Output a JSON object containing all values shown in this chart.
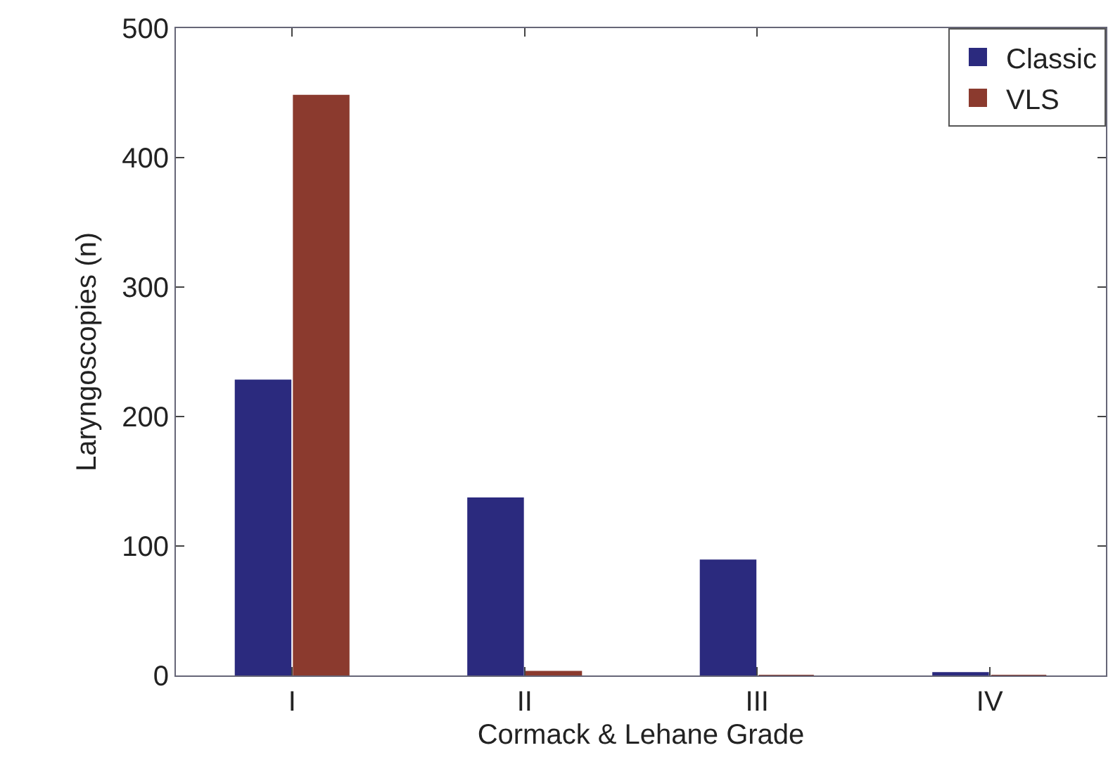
{
  "chart_data": {
    "type": "bar",
    "xlabel": "Cormack & Lehane Grade",
    "ylabel": "Laryngoscopies (n)",
    "categories": [
      "I",
      "II",
      "III",
      "IV"
    ],
    "series": [
      {
        "name": "Classic",
        "color": "#2b2a7e",
        "values": [
          228,
          137,
          89,
          2
        ]
      },
      {
        "name": "VLS",
        "color": "#8b3a2e",
        "values": [
          448,
          3,
          0,
          0
        ]
      }
    ],
    "ylim": [
      0,
      500
    ],
    "yticks": [
      0,
      100,
      200,
      300,
      400,
      500
    ],
    "grid": false,
    "legend": "top right"
  }
}
